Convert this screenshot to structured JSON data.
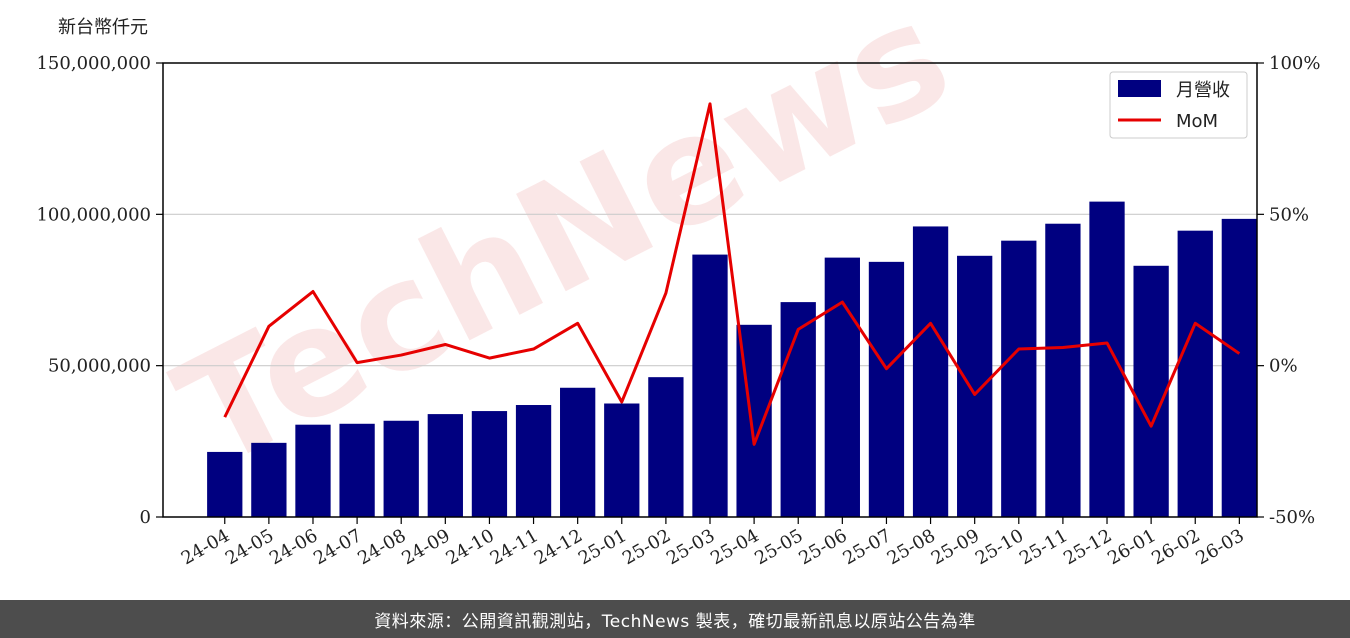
{
  "unit_label": "新台幣仟元",
  "watermark": "TechNews",
  "footer_text": "資料來源：公開資訊觀測站，TechNews 製表，確切最新訊息以原站公告為準",
  "colors": {
    "bar": "#000080",
    "line": "#e60000",
    "grid": "#cccccc",
    "footer_bg": "#4d4d4d"
  },
  "chart_data": {
    "type": "bar",
    "categories": [
      "24-04",
      "24-05",
      "24-06",
      "24-07",
      "24-08",
      "24-09",
      "24-10",
      "24-11",
      "24-12",
      "25-01",
      "25-02",
      "25-03",
      "25-04",
      "25-05",
      "25-06",
      "25-07",
      "25-08",
      "25-09",
      "25-10",
      "25-11",
      "25-12",
      "26-01",
      "26-02",
      "26-03"
    ],
    "series": [
      {
        "name": "月營收",
        "type": "bar",
        "axis": "left",
        "values": [
          21500000,
          24500000,
          30500000,
          30800000,
          31800000,
          34000000,
          35000000,
          37000000,
          42700000,
          37500000,
          46200000,
          86700000,
          63500000,
          71000000,
          85700000,
          84300000,
          96000000,
          86300000,
          91300000,
          96900000,
          104200000,
          83000000,
          94600000,
          98500000
        ]
      },
      {
        "name": "MoM",
        "type": "line",
        "axis": "right",
        "values": [
          -17,
          13,
          24.5,
          1,
          3.5,
          7,
          2.5,
          5.5,
          14,
          -12,
          24,
          86.5,
          -26,
          12,
          21,
          -1,
          14,
          -9.5,
          5.5,
          6,
          7.5,
          -20,
          14,
          4
        ]
      }
    ],
    "y_left": {
      "range": [
        0,
        150000000
      ],
      "ticks": [
        0,
        50000000,
        100000000,
        150000000
      ],
      "tick_labels": [
        "0",
        "50,000,000",
        "100,000,000",
        "150,000,000"
      ]
    },
    "y_right": {
      "range": [
        -50,
        100
      ],
      "ticks": [
        -50,
        0,
        50,
        100
      ],
      "tick_labels": [
        "-50%",
        "0%",
        "50%",
        "100%"
      ]
    },
    "grid": true,
    "legend": "top-right"
  }
}
